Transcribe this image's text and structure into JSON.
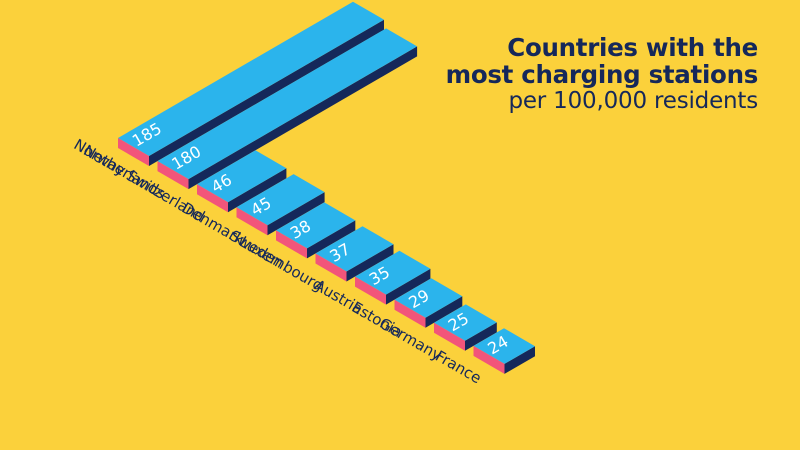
{
  "header": {
    "title_line1": "Countries with the",
    "title_line2": "most charging stations",
    "subtitle": "per 100,000 residents"
  },
  "colors": {
    "background": "#FBD13B",
    "bar_top": "#2BB4EC",
    "bar_front": "#F2557A",
    "bar_side": "#15285A",
    "text_dark": "#15285A",
    "value_text": "#FFFFFF"
  },
  "chart_data": {
    "type": "bar",
    "style": "isometric",
    "categories": [
      "Norway",
      "Netherlands",
      "Switzerland",
      "Denmark",
      "Sweden",
      "Luxembourg",
      "Austria",
      "Estonia",
      "Germany",
      "France"
    ],
    "values": [
      185,
      180,
      46,
      45,
      38,
      37,
      35,
      29,
      25,
      24
    ],
    "title": "Countries with the most charging stations",
    "subtitle": "per 100,000 residents",
    "xlabel": "",
    "ylabel": "",
    "data_labels": [
      "185",
      "180",
      "46",
      "45",
      "38",
      "37",
      "35",
      "29",
      "25",
      "24"
    ],
    "grid": false,
    "legend": "none"
  }
}
